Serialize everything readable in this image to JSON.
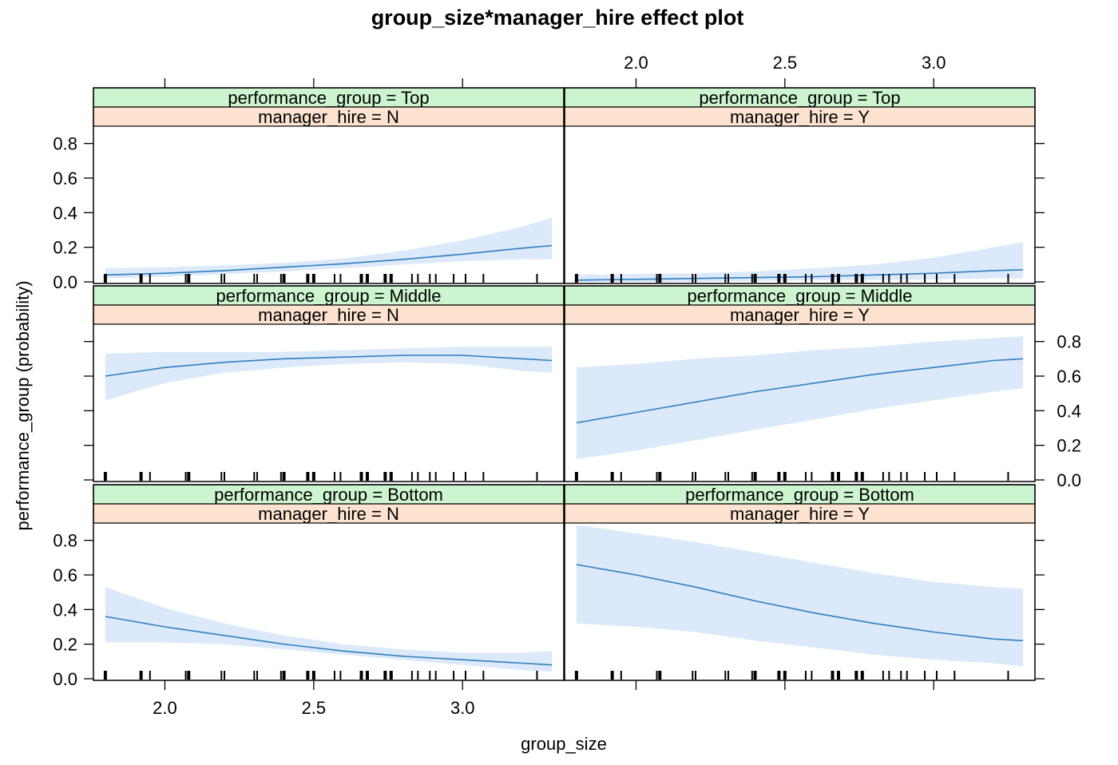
{
  "chart_data": {
    "type": "line",
    "title": "group_size*manager_hire effect plot",
    "xlabel": "group_size",
    "ylabel": "performance_group (probability)",
    "xlim": [
      1.76,
      3.34
    ],
    "ylim": [
      0.0,
      0.9
    ],
    "x_ticks": [
      "2.0",
      "2.5",
      "3.0"
    ],
    "y_ticks": [
      "0.0",
      "0.2",
      "0.4",
      "0.6",
      "0.8"
    ],
    "grid": false,
    "colors": {
      "line": "#2f7fc1",
      "band": "#dbe9fa",
      "strip_performance": "#ccf5cf",
      "strip_manager": "#fde3cf"
    },
    "rug_x": [
      1.8,
      1.92,
      1.95,
      2.07,
      2.08,
      2.19,
      2.2,
      2.3,
      2.31,
      2.39,
      2.4,
      2.48,
      2.5,
      2.57,
      2.59,
      2.66,
      2.68,
      2.74,
      2.76,
      2.83,
      2.85,
      2.89,
      2.91,
      2.97,
      3.01,
      3.07,
      3.25
    ],
    "panels": [
      {
        "performance_strip": "performance_group = Top",
        "manager_strip": "manager_hire = N",
        "x": [
          1.8,
          2.0,
          2.2,
          2.4,
          2.6,
          2.8,
          3.0,
          3.2,
          3.3
        ],
        "y": [
          0.04,
          0.05,
          0.065,
          0.085,
          0.105,
          0.13,
          0.16,
          0.195,
          0.21
        ],
        "lower": [
          0.02,
          0.03,
          0.045,
          0.06,
          0.08,
          0.1,
          0.12,
          0.13,
          0.13
        ],
        "upper": [
          0.08,
          0.085,
          0.095,
          0.11,
          0.135,
          0.18,
          0.24,
          0.32,
          0.37
        ]
      },
      {
        "performance_strip": "performance_group = Top",
        "manager_strip": "manager_hire = Y",
        "x": [
          1.8,
          2.0,
          2.2,
          2.4,
          2.6,
          2.8,
          3.0,
          3.2,
          3.3
        ],
        "y": [
          0.01,
          0.015,
          0.02,
          0.025,
          0.03,
          0.04,
          0.05,
          0.065,
          0.07
        ],
        "lower": [
          0.0,
          0.0,
          0.0,
          0.005,
          0.01,
          0.01,
          0.015,
          0.02,
          0.02
        ],
        "upper": [
          0.04,
          0.045,
          0.05,
          0.06,
          0.08,
          0.1,
          0.14,
          0.2,
          0.23
        ]
      },
      {
        "performance_strip": "performance_group = Middle",
        "manager_strip": "manager_hire = N",
        "x": [
          1.8,
          2.0,
          2.2,
          2.4,
          2.6,
          2.8,
          3.0,
          3.2,
          3.3
        ],
        "y": [
          0.6,
          0.65,
          0.68,
          0.7,
          0.71,
          0.72,
          0.72,
          0.7,
          0.69
        ],
        "lower": [
          0.46,
          0.56,
          0.62,
          0.65,
          0.67,
          0.68,
          0.67,
          0.63,
          0.62
        ],
        "upper": [
          0.73,
          0.74,
          0.74,
          0.74,
          0.75,
          0.76,
          0.77,
          0.77,
          0.77
        ]
      },
      {
        "performance_strip": "performance_group = Middle",
        "manager_strip": "manager_hire = Y",
        "x": [
          1.8,
          2.0,
          2.2,
          2.4,
          2.6,
          2.8,
          3.0,
          3.2,
          3.3
        ],
        "y": [
          0.33,
          0.39,
          0.45,
          0.51,
          0.56,
          0.61,
          0.65,
          0.69,
          0.7
        ],
        "lower": [
          0.12,
          0.17,
          0.23,
          0.29,
          0.35,
          0.41,
          0.46,
          0.51,
          0.53
        ],
        "upper": [
          0.65,
          0.67,
          0.7,
          0.72,
          0.75,
          0.77,
          0.8,
          0.82,
          0.83
        ]
      },
      {
        "performance_strip": "performance_group = Bottom",
        "manager_strip": "manager_hire = N",
        "x": [
          1.8,
          2.0,
          2.2,
          2.4,
          2.6,
          2.8,
          3.0,
          3.2,
          3.3
        ],
        "y": [
          0.36,
          0.3,
          0.25,
          0.2,
          0.16,
          0.13,
          0.11,
          0.09,
          0.08
        ],
        "lower": [
          0.21,
          0.21,
          0.2,
          0.17,
          0.14,
          0.11,
          0.08,
          0.05,
          0.04
        ],
        "upper": [
          0.53,
          0.41,
          0.32,
          0.25,
          0.2,
          0.17,
          0.15,
          0.15,
          0.16
        ]
      },
      {
        "performance_strip": "performance_group = Bottom",
        "manager_strip": "manager_hire = Y",
        "x": [
          1.8,
          2.0,
          2.2,
          2.4,
          2.6,
          2.8,
          3.0,
          3.2,
          3.3
        ],
        "y": [
          0.66,
          0.6,
          0.53,
          0.45,
          0.38,
          0.32,
          0.27,
          0.23,
          0.22
        ],
        "lower": [
          0.32,
          0.3,
          0.27,
          0.22,
          0.18,
          0.14,
          0.11,
          0.09,
          0.07
        ],
        "upper": [
          0.89,
          0.84,
          0.79,
          0.73,
          0.67,
          0.61,
          0.56,
          0.53,
          0.52
        ]
      }
    ]
  }
}
